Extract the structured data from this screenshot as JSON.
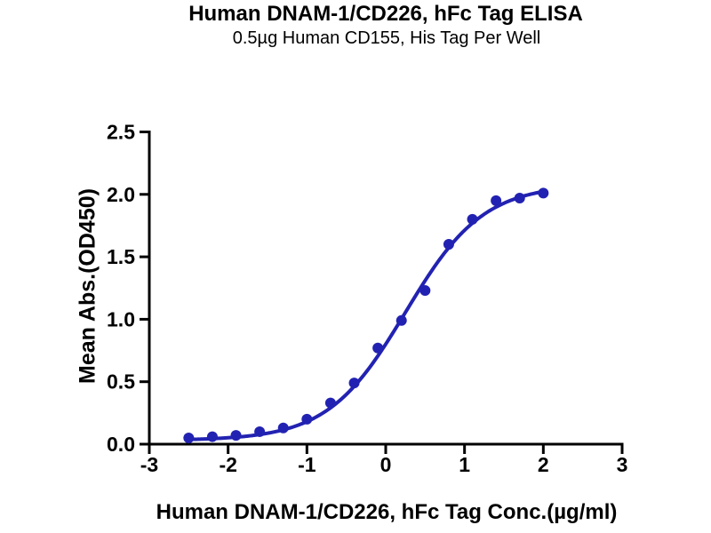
{
  "chart_data": {
    "type": "scatter",
    "title": "Human DNAM-1/CD226, hFc Tag ELISA",
    "subtitle": "0.5µg Human CD155, His Tag Per Well",
    "xlabel": "Human DNAM-1/CD226, hFc Tag Conc.(µg/ml)",
    "ylabel": "Mean Abs.(OD450)",
    "xlim": [
      -3,
      3
    ],
    "ylim": [
      0,
      2.5
    ],
    "grid": false,
    "legend": "none",
    "x_tick_values": [
      -3,
      -2,
      -1,
      0,
      1,
      2,
      3
    ],
    "x_tick_labels": [
      "-3",
      "-2",
      "-1",
      "0",
      "1",
      "2",
      "3"
    ],
    "y_tick_values": [
      0,
      0.5,
      1.0,
      1.5,
      2.0,
      2.5
    ],
    "y_tick_labels": [
      "0.0",
      "0.5",
      "1.0",
      "1.5",
      "2.0",
      "2.5"
    ],
    "series": [
      {
        "marker": "circle",
        "color": "#2222b2",
        "x": [
          -2.5,
          -2.2,
          -1.9,
          -1.6,
          -1.3,
          -1.0,
          -0.7,
          -0.4,
          -0.1,
          0.2,
          0.5,
          0.8,
          1.1,
          1.4,
          1.7,
          2.0
        ],
        "y": [
          0.05,
          0.06,
          0.07,
          0.1,
          0.13,
          0.2,
          0.33,
          0.49,
          0.77,
          0.99,
          1.23,
          1.6,
          1.8,
          1.95,
          1.97,
          2.01
        ]
      }
    ],
    "fit_curve": {
      "model": "4PL",
      "bottom": 0.03,
      "top": 2.08,
      "logEC50": 0.25,
      "hillslope": 0.88,
      "x_range": [
        -2.5,
        2.0
      ]
    },
    "colors": {
      "series": "#2222b2",
      "axis": "#000000",
      "background": "#ffffff"
    }
  }
}
